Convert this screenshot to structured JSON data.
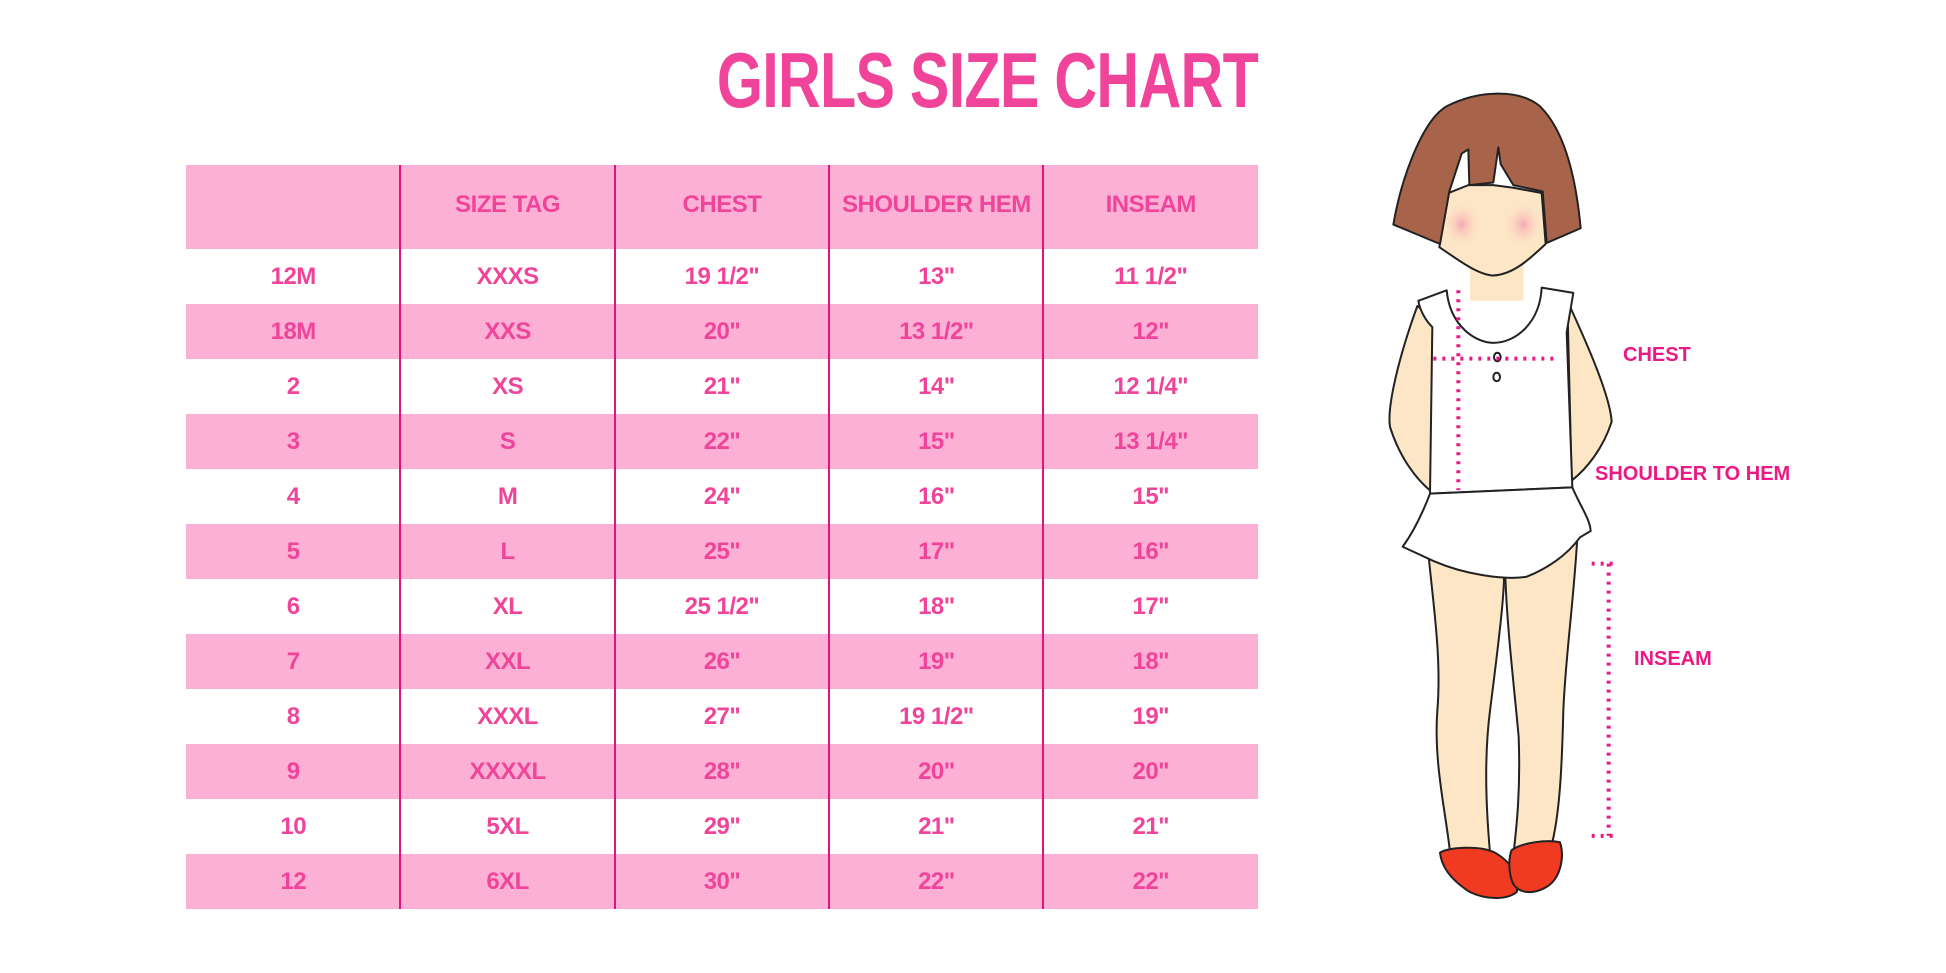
{
  "title": "GIRLS SIZE CHART",
  "table": {
    "headers": [
      "",
      "SIZE TAG",
      "CHEST",
      "SHOULDER HEM",
      "INSEAM"
    ],
    "rows": [
      [
        "12M",
        "XXXS",
        "19 1/2\"",
        "13\"",
        "11 1/2\""
      ],
      [
        "18M",
        "XXS",
        "20\"",
        "13 1/2\"",
        "12\""
      ],
      [
        "2",
        "XS",
        "21\"",
        "14\"",
        "12 1/4\""
      ],
      [
        "3",
        "S",
        "22\"",
        "15\"",
        "13 1/4\""
      ],
      [
        "4",
        "M",
        "24\"",
        "16\"",
        "15\""
      ],
      [
        "5",
        "L",
        "25\"",
        "17\"",
        "16\""
      ],
      [
        "6",
        "XL",
        "25 1/2\"",
        "18\"",
        "17\""
      ],
      [
        "7",
        "XXL",
        "26\"",
        "19\"",
        "18\""
      ],
      [
        "8",
        "XXXL",
        "27\"",
        "19 1/2\"",
        "19\""
      ],
      [
        "9",
        "XXXXL",
        "28\"",
        "20\"",
        "20\""
      ],
      [
        "10",
        "5XL",
        "29\"",
        "21\"",
        "21\""
      ],
      [
        "12",
        "6XL",
        "30\"",
        "22\"",
        "22\""
      ]
    ]
  },
  "illustration": {
    "labels": {
      "chest": "CHEST",
      "shoulder_to_hem": "SHOULDER TO HEM",
      "inseam": "INSEAM"
    }
  },
  "colors": {
    "accent": "#f0449a",
    "stripe": "#fdb0d5",
    "divider": "#e2157f",
    "measure": "#ea1a84",
    "hair": "#a8644a",
    "skin": "#fde6c6",
    "shoes": "#f03a22"
  }
}
